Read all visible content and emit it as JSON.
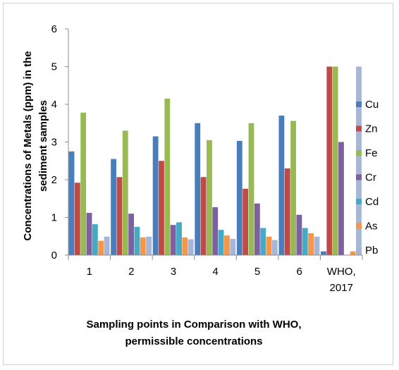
{
  "chart_data": {
    "type": "bar",
    "categories": [
      "1",
      "2",
      "3",
      "4",
      "5",
      "6",
      "WHO, 2017"
    ],
    "category_lines": [
      [
        "1"
      ],
      [
        "2"
      ],
      [
        "3"
      ],
      [
        "4"
      ],
      [
        "5"
      ],
      [
        "6"
      ],
      [
        "WHO,",
        "2017"
      ]
    ],
    "series": [
      {
        "name": "Cu",
        "color": "#4a7ebb",
        "values": [
          2.75,
          2.55,
          3.15,
          3.5,
          3.03,
          3.7,
          0.1
        ]
      },
      {
        "name": "Zn",
        "color": "#be4b48",
        "values": [
          1.92,
          2.07,
          2.5,
          2.07,
          1.76,
          2.3,
          5.0
        ]
      },
      {
        "name": "Fe",
        "color": "#98b954",
        "values": [
          3.78,
          3.3,
          4.15,
          3.05,
          3.5,
          3.56,
          5.0
        ]
      },
      {
        "name": "Cr",
        "color": "#7d60a0",
        "values": [
          1.12,
          1.1,
          0.8,
          1.27,
          1.37,
          1.07,
          3.0
        ]
      },
      {
        "name": "Cd",
        "color": "#46aac5",
        "values": [
          0.82,
          0.75,
          0.87,
          0.67,
          0.72,
          0.72,
          0
        ]
      },
      {
        "name": "As",
        "color": "#f79646",
        "values": [
          0.38,
          0.47,
          0.47,
          0.52,
          0.49,
          0.58,
          0.1
        ]
      },
      {
        "name": "Pb",
        "color": "#a5b6d9",
        "values": [
          0.49,
          0.49,
          0.42,
          0.43,
          0.4,
          0.49,
          5.0
        ]
      }
    ],
    "ylim": [
      0,
      6
    ],
    "yticks": [
      "0",
      "1",
      "2",
      "3",
      "4",
      "5",
      "6"
    ],
    "ylabel_lines": [
      "Concentrations of Metals (ppm) in the",
      "sediment samples"
    ],
    "xlabel_lines": [
      "Sampling points in Comparison with WHO,",
      "permissible concentrations"
    ],
    "legend_position": "right",
    "grid": false
  }
}
